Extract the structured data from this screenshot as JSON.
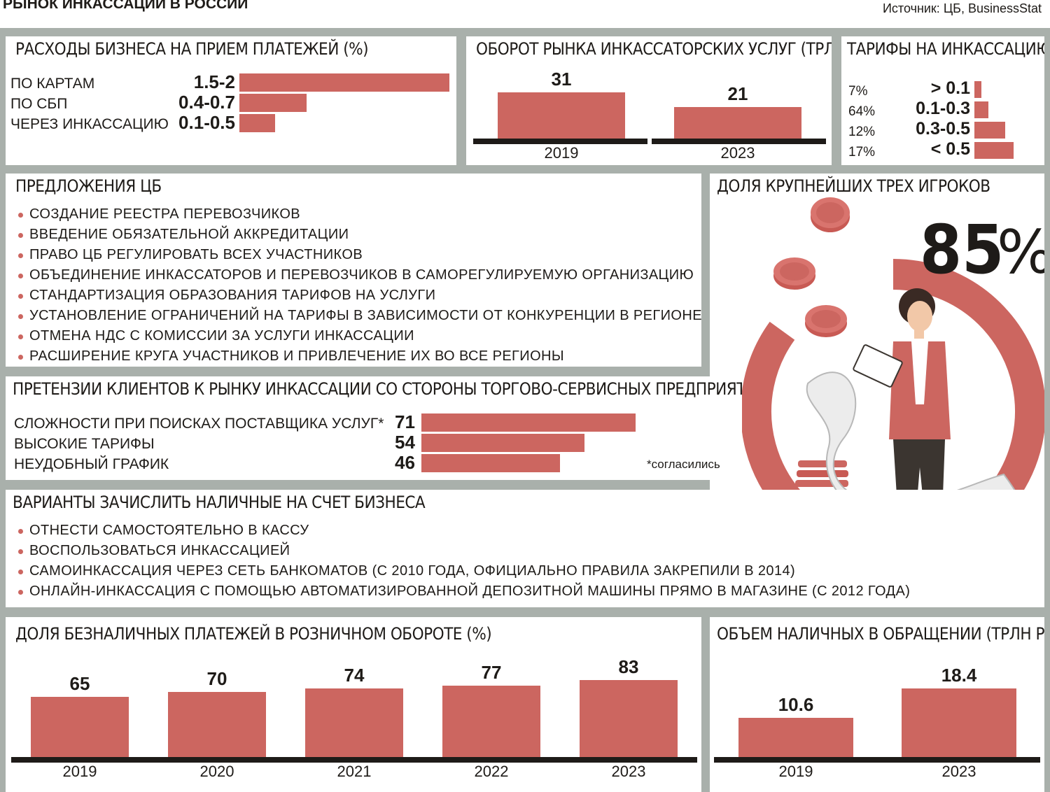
{
  "header": {
    "title": "РЫНОК ИНКАССАЦИИ В РОССИИ",
    "source": "Источник: ЦБ, BusinessStat"
  },
  "colors": {
    "bar": "#cc6660",
    "frame": "#a9b0ab",
    "ink": "#1e1b18"
  },
  "expenses": {
    "title": "РАСХОДЫ БИЗНЕСА НА ПРИЕМ ПЛАТЕЖЕЙ (%)",
    "rows": [
      {
        "label": "ПО КАРТАМ",
        "value": "1.5-2",
        "share": 1.0
      },
      {
        "label": "ПО СБП",
        "value": "0.4-0.7",
        "share": 0.32
      },
      {
        "label": "ЧЕРЕЗ ИНКАССАЦИЮ",
        "value": "0.1-0.5",
        "share": 0.17
      }
    ]
  },
  "turnover": {
    "title": "ОБОРОТ РЫНКА ИНКАССАТОРСКИХ УСЛУГ (ТРЛН РУБ.)",
    "chart_data": {
      "type": "bar",
      "categories": [
        "2019",
        "2023"
      ],
      "values": [
        31,
        21
      ],
      "ylim": [
        0,
        31
      ]
    }
  },
  "tariffs": {
    "title": "ТАРИФЫ НА ИНКАССАЦИЮ (%)",
    "rows": [
      {
        "share": "7%",
        "range": "> 0.1",
        "fraction": 0.07
      },
      {
        "share": "64%",
        "range": "0.1-0.3",
        "fraction": 0.64
      },
      {
        "share": "12%",
        "range": "0.3-0.5",
        "fraction": 0.12
      },
      {
        "share": "17%",
        "range": "< 0.5",
        "fraction": 0.17
      }
    ]
  },
  "cb_proposals": {
    "title": "ПРЕДЛОЖЕНИЯ ЦБ",
    "items": [
      "СОЗДАНИЕ РЕЕСТРА ПЕРЕВОЗЧИКОВ",
      "ВВЕДЕНИЕ ОБЯЗАТЕЛЬНОЙ АККРЕДИТАЦИИ",
      "ПРАВО ЦБ РЕГУЛИРОВАТЬ ВСЕХ УЧАСТНИКОВ",
      "ОБЪЕДИНЕНИЕ ИНКАССАТОРОВ И ПЕРЕВОЗЧИКОВ В САМОРЕГУЛИРУЕМУЮ ОРГАНИЗАЦИЮ",
      "СТАНДАРТИЗАЦИЯ ОБРАЗОВАНИЯ ТАРИФОВ НА УСЛУГИ",
      "УСТАНОВЛЕНИЕ ОГРАНИЧЕНИЙ НА ТАРИФЫ В ЗАВИСИМОСТИ ОТ КОНКУРЕНЦИИ В РЕГИОНЕ",
      "ОТМЕНА НДС С КОМИССИИ ЗА УСЛУГИ ИНКАССАЦИИ",
      "РАСШИРЕНИЕ КРУГА УЧАСТНИКОВ И ПРИВЛЕЧЕНИЕ ИХ ВО ВСЕ РЕГИОНЫ"
    ]
  },
  "top3": {
    "title": "ДОЛЯ КРУПНЕЙШИХ ТРЕХ ИГРОКОВ",
    "value": "85",
    "unit": "%",
    "fraction": 0.85
  },
  "claims": {
    "title": "ПРЕТЕНЗИИ КЛИЕНТОВ К РЫНКУ ИНКАССАЦИИ СО СТОРОНЫ ТОРГОВО-СЕРВИСНЫХ ПРЕДПРИЯТИЙ (%)",
    "note": "*согласились",
    "chart_data": {
      "type": "bar",
      "categories": [
        "СЛОЖНОСТИ ПРИ ПОИСКАХ ПОСТАВЩИКА УСЛУГ*",
        "ВЫСОКИЕ ТАРИФЫ",
        "НЕУДОБНЫЙ ГРАФИК"
      ],
      "values": [
        71,
        54,
        46
      ],
      "xlim": [
        0,
        71
      ]
    }
  },
  "cash_options": {
    "title": "ВАРИАНТЫ ЗАЧИСЛИТЬ НАЛИЧНЫЕ НА СЧЕТ БИЗНЕСА",
    "items": [
      "ОТНЕСТИ САМОСТОЯТЕЛЬНО В КАССУ",
      "ВОСПОЛЬЗОВАТЬСЯ ИНКАССАЦИЕЙ",
      "САМОИНКАССАЦИЯ ЧЕРЕЗ СЕТЬ БАНКОМАТОВ (С 2010 ГОДА, ОФИЦИАЛЬНО ПРАВИЛА ЗАКРЕПИЛИ В 2014)",
      "ОНЛАЙН-ИНКАССАЦИЯ С ПОМОЩЬЮ АВТОМАТИЗИРОВАННОЙ ДЕПОЗИТНОЙ МАШИНЫ ПРЯМО В МАГАЗИНЕ (С 2012 ГОДА)"
    ]
  },
  "cashless": {
    "title": "ДОЛЯ БЕЗНАЛИЧНЫХ ПЛАТЕЖЕЙ В РОЗНИЧНОМ ОБОРОТЕ (%)",
    "chart_data": {
      "type": "bar",
      "categories": [
        "2019",
        "2020",
        "2021",
        "2022",
        "2023"
      ],
      "values": [
        65,
        70,
        74,
        77,
        83
      ],
      "ylim": [
        0,
        83
      ]
    }
  },
  "cash_volume": {
    "title": "ОБЪЕМ НАЛИЧНЫХ В ОБРАЩЕНИИ (ТРЛН РУБ.)",
    "chart_data": {
      "type": "bar",
      "categories": [
        "2019",
        "2023"
      ],
      "values": [
        "10.6",
        "18.4"
      ],
      "ylim": [
        0,
        18.4
      ]
    }
  }
}
